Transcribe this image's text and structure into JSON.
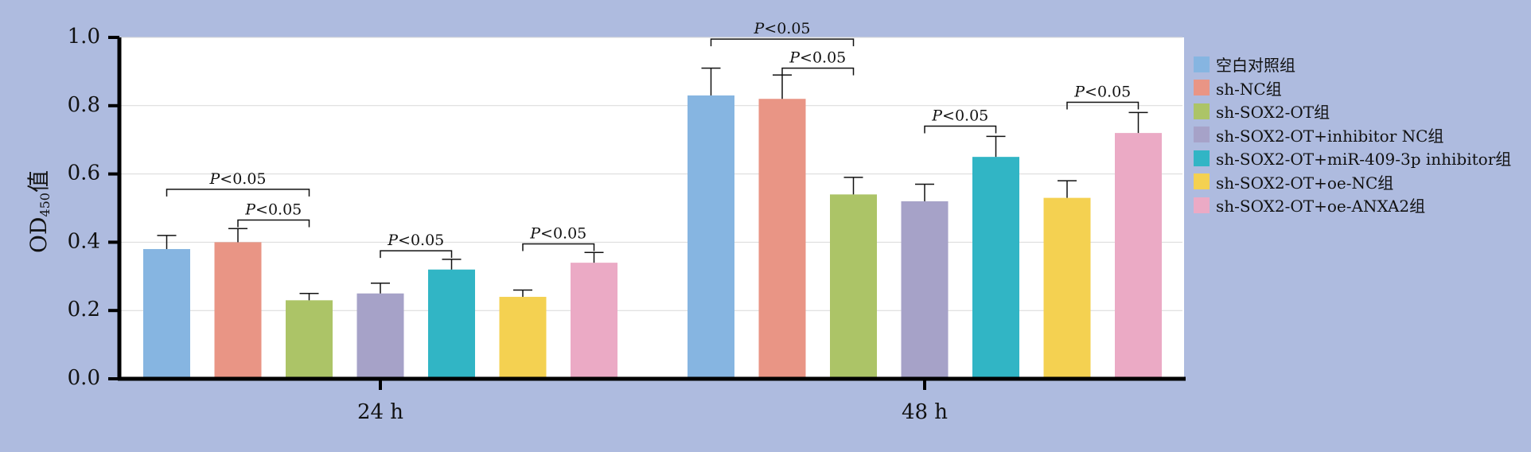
{
  "chart_data": {
    "type": "bar",
    "ylabel": "OD450值",
    "ylim": [
      0,
      1.0
    ],
    "yticks": [
      "0.0",
      "0.2",
      "0.4",
      "0.6",
      "0.8",
      "1.0"
    ],
    "categories": [
      "24 h",
      "48 h"
    ],
    "grid": true,
    "legend_position": "right",
    "series": [
      {
        "name": "空白对照组",
        "color": "#86b5e1",
        "values": [
          0.38,
          0.83
        ],
        "errors": [
          0.04,
          0.08
        ]
      },
      {
        "name": "sh-NC组",
        "color": "#e99585",
        "values": [
          0.4,
          0.82
        ],
        "errors": [
          0.04,
          0.07
        ]
      },
      {
        "name": "sh-SOX2-OT组",
        "color": "#acc467",
        "values": [
          0.23,
          0.54
        ],
        "errors": [
          0.02,
          0.05
        ]
      },
      {
        "name": "sh-SOX2-OT+inhibitor NC组",
        "color": "#a6a2c8",
        "values": [
          0.25,
          0.52
        ],
        "errors": [
          0.03,
          0.05
        ]
      },
      {
        "name": "sh-SOX2-OT+miR-409-3p inhibitor组",
        "color": "#31b5c5",
        "values": [
          0.32,
          0.65
        ],
        "errors": [
          0.03,
          0.06
        ]
      },
      {
        "name": "sh-SOX2-OT+oe-NC组",
        "color": "#f4d151",
        "values": [
          0.24,
          0.53
        ],
        "errors": [
          0.02,
          0.05
        ]
      },
      {
        "name": "sh-SOX2-OT+oe-ANXA2组",
        "color": "#ebaac5",
        "values": [
          0.34,
          0.72
        ],
        "errors": [
          0.03,
          0.06
        ]
      }
    ],
    "annotations": [
      {
        "text": "P<0.05",
        "group": 0,
        "from": 0,
        "to": 2,
        "level": 0.555
      },
      {
        "text": "P<0.05",
        "group": 0,
        "from": 1,
        "to": 2,
        "level": 0.465
      },
      {
        "text": "P<0.05",
        "group": 0,
        "from": 3,
        "to": 4,
        "level": 0.375
      },
      {
        "text": "P<0.05",
        "group": 0,
        "from": 5,
        "to": 6,
        "level": 0.395
      },
      {
        "text": "P<0.05",
        "group": 1,
        "from": 0,
        "to": 2,
        "level": 0.995
      },
      {
        "text": "P<0.05",
        "group": 1,
        "from": 1,
        "to": 2,
        "level": 0.91
      },
      {
        "text": "P<0.05",
        "group": 1,
        "from": 3,
        "to": 4,
        "level": 0.74
      },
      {
        "text": "P<0.05",
        "group": 1,
        "from": 5,
        "to": 6,
        "level": 0.81
      }
    ]
  }
}
